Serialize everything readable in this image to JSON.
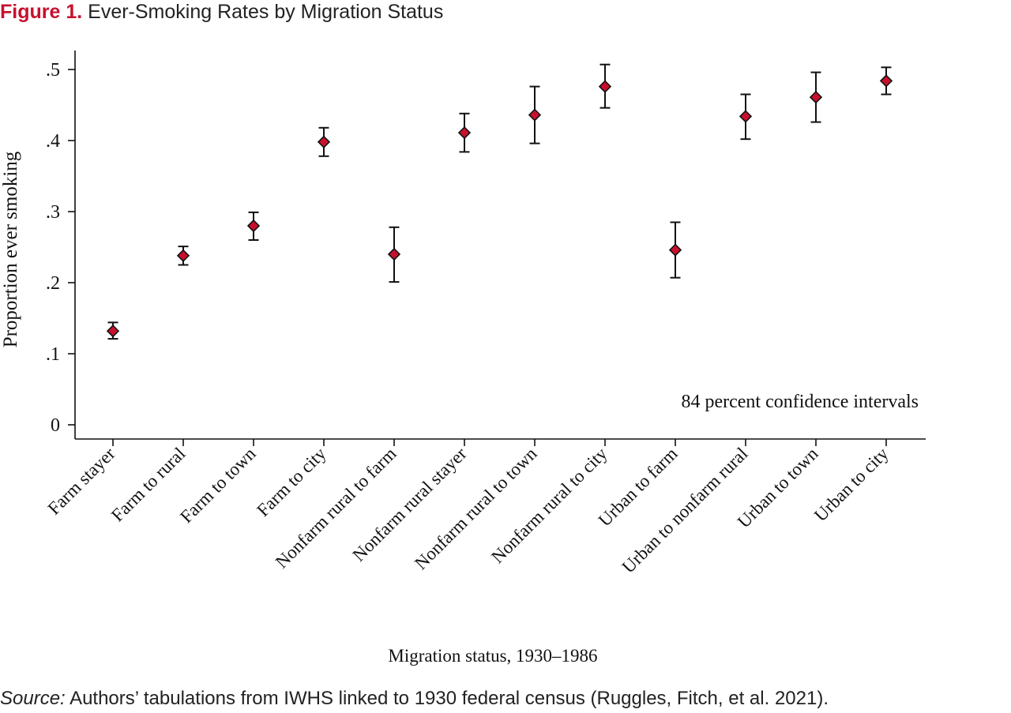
{
  "figure": {
    "number": "Figure 1.",
    "title": "Ever-Smoking Rates by Migration Status"
  },
  "source": {
    "label": "Source:",
    "text": "Authors’ tabulations from IWHS linked to 1930 federal census (Ruggles, Fitch, et al. 2021)."
  },
  "chart_data": {
    "type": "scatter",
    "title": "",
    "xlabel": "Migration status, 1930–1986",
    "ylabel": "Proportion ever smoking",
    "ylim": [
      0,
      0.5
    ],
    "yticks": [
      {
        "value": 0,
        "label": "0"
      },
      {
        "value": 0.1,
        "label": ".1"
      },
      {
        "value": 0.2,
        "label": ".2"
      },
      {
        "value": 0.3,
        "label": ".3"
      },
      {
        "value": 0.4,
        "label": ".4"
      },
      {
        "value": 0.5,
        "label": ".5"
      }
    ],
    "grid": false,
    "annotation": "84 percent confidence intervals",
    "marker_color": "#c8102e",
    "categories": [
      "Farm stayer",
      "Farm to rural",
      "Farm to town",
      "Farm to city",
      "Nonfarm rural to farm",
      "Nonfarm rural stayer",
      "Nonfarm rural to town",
      "Nonfarm rural to city",
      "Urban to farm",
      "Urban to nonfarm rural",
      "Urban to town",
      "Urban to city"
    ],
    "values": [
      0.132,
      0.238,
      0.28,
      0.398,
      0.24,
      0.411,
      0.436,
      0.476,
      0.246,
      0.434,
      0.461,
      0.484
    ],
    "ci_low": [
      0.121,
      0.225,
      0.26,
      0.378,
      0.201,
      0.384,
      0.396,
      0.446,
      0.207,
      0.402,
      0.426,
      0.465
    ],
    "ci_high": [
      0.144,
      0.251,
      0.299,
      0.418,
      0.278,
      0.438,
      0.476,
      0.507,
      0.285,
      0.465,
      0.496,
      0.503
    ]
  }
}
